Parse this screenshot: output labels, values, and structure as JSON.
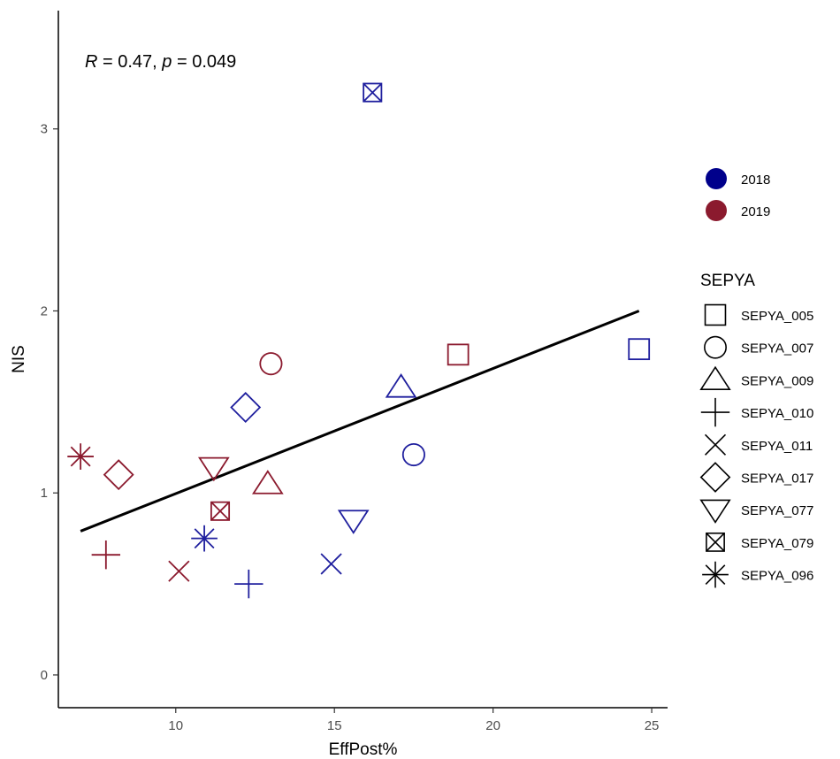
{
  "chart_data": {
    "type": "scatter",
    "xlabel": "EffPost%",
    "ylabel": "NIS",
    "xlim": [
      6.3,
      25.5
    ],
    "ylim": [
      -0.18,
      3.65
    ],
    "x_ticks": [
      10,
      15,
      20,
      25
    ],
    "y_ticks": [
      0,
      1,
      2,
      3
    ],
    "grid": false,
    "annotation": {
      "R_label": "R",
      "R_rest": " = 0.47, ",
      "p_label": "p",
      "p_rest": " = 0.049"
    },
    "colors": {
      "2018": "#1f1f9e",
      "2019": "#8b1a2e"
    },
    "legend_colors": {
      "title": "",
      "placement": "right",
      "items": [
        {
          "label": "2018",
          "color": "#00008b"
        },
        {
          "label": "2019",
          "color": "#8b1a2e"
        }
      ]
    },
    "legend_shapes": {
      "title": "SEPYA",
      "placement": "right",
      "items": [
        {
          "label": "SEPYA_005",
          "shape": "square"
        },
        {
          "label": "SEPYA_007",
          "shape": "circle"
        },
        {
          "label": "SEPYA_009",
          "shape": "triangle-up"
        },
        {
          "label": "SEPYA_010",
          "shape": "plus"
        },
        {
          "label": "SEPYA_011",
          "shape": "cross"
        },
        {
          "label": "SEPYA_017",
          "shape": "diamond"
        },
        {
          "label": "SEPYA_077",
          "shape": "triangle-down"
        },
        {
          "label": "SEPYA_079",
          "shape": "square-cross"
        },
        {
          "label": "SEPYA_096",
          "shape": "asterisk"
        }
      ]
    },
    "regression_line": {
      "x": [
        7.0,
        24.6
      ],
      "y": [
        0.79,
        2.0
      ]
    },
    "points": [
      {
        "id": "SEPYA_079",
        "year": "2018",
        "x": 16.2,
        "y": 3.2
      },
      {
        "id": "SEPYA_005",
        "year": "2018",
        "x": 24.6,
        "y": 1.79
      },
      {
        "id": "SEPYA_007",
        "year": "2018",
        "x": 17.5,
        "y": 1.21
      },
      {
        "id": "SEPYA_009",
        "year": "2018",
        "x": 17.1,
        "y": 1.58
      },
      {
        "id": "SEPYA_010",
        "year": "2018",
        "x": 12.3,
        "y": 0.5
      },
      {
        "id": "SEPYA_011",
        "year": "2018",
        "x": 14.9,
        "y": 0.61
      },
      {
        "id": "SEPYA_017",
        "year": "2018",
        "x": 12.2,
        "y": 1.47
      },
      {
        "id": "SEPYA_077",
        "year": "2018",
        "x": 15.6,
        "y": 0.85
      },
      {
        "id": "SEPYA_096",
        "year": "2018",
        "x": 10.9,
        "y": 0.75
      },
      {
        "id": "SEPYA_005",
        "year": "2019",
        "x": 18.9,
        "y": 1.76
      },
      {
        "id": "SEPYA_007",
        "year": "2019",
        "x": 13.0,
        "y": 1.71
      },
      {
        "id": "SEPYA_009",
        "year": "2019",
        "x": 12.9,
        "y": 1.05
      },
      {
        "id": "SEPYA_010",
        "year": "2019",
        "x": 7.8,
        "y": 0.66
      },
      {
        "id": "SEPYA_011",
        "year": "2019",
        "x": 10.1,
        "y": 0.57
      },
      {
        "id": "SEPYA_017",
        "year": "2019",
        "x": 8.2,
        "y": 1.1
      },
      {
        "id": "SEPYA_077",
        "year": "2019",
        "x": 11.2,
        "y": 1.14
      },
      {
        "id": "SEPYA_079",
        "year": "2019",
        "x": 11.4,
        "y": 0.9
      },
      {
        "id": "SEPYA_096",
        "year": "2019",
        "x": 7.0,
        "y": 1.2
      }
    ]
  }
}
